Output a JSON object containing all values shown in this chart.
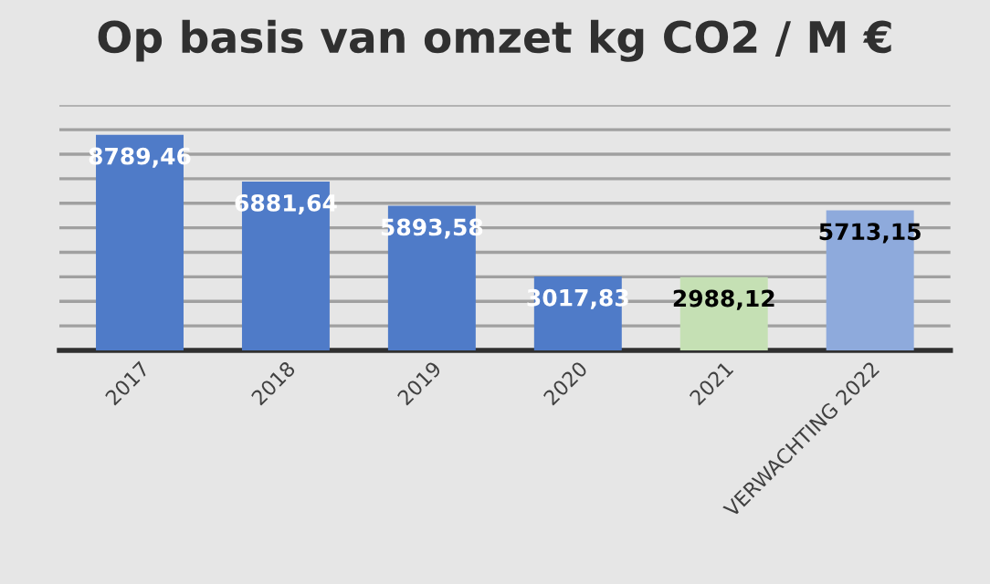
{
  "chart_data": {
    "type": "bar",
    "title": "Op basis van omzet kg CO2 / M €",
    "categories": [
      "2017",
      "2018",
      "2019",
      "2020",
      "2021",
      "VERWACHTING 2022"
    ],
    "values": [
      8789.46,
      6881.64,
      5893.58,
      3017.83,
      2988.12,
      5713.15
    ],
    "value_labels": [
      "8789,46",
      "6881,64",
      "5893,58",
      "3017,83",
      "2988,12",
      "5713,15"
    ],
    "colors": [
      "#4f7bc8",
      "#4f7bc8",
      "#4f7bc8",
      "#4f7bc8",
      "#c5e0b4",
      "#8eaadc"
    ],
    "ylim": [
      0,
      10000
    ],
    "yticks": [
      {
        "value": 0,
        "label": null
      },
      {
        "value": 1000,
        "label": null
      },
      {
        "value": 2000,
        "label": null
      },
      {
        "value": 3000,
        "label": null
      },
      {
        "value": 4000,
        "label": null
      },
      {
        "value": 5000,
        "label": null
      },
      {
        "value": 6000,
        "label": null
      },
      {
        "value": 7000,
        "label": null
      },
      {
        "value": 8000,
        "label": null
      },
      {
        "value": 9000,
        "label": null
      },
      {
        "value": 10000,
        "label": null
      }
    ],
    "grid": "y",
    "legend": false
  }
}
